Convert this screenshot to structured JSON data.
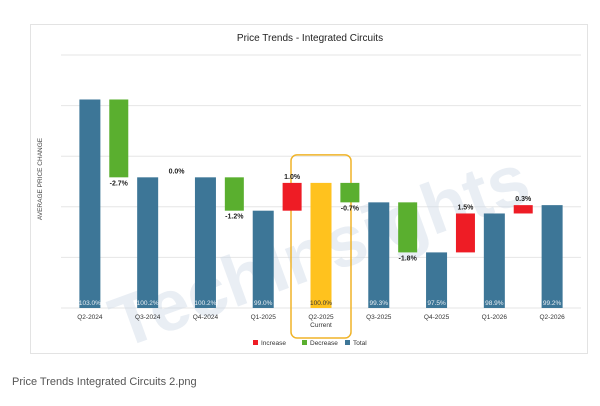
{
  "caption": "Price Trends Integrated Circuits 2.png",
  "watermark": "TechInsights",
  "colors": {
    "increase": "#ee1c25",
    "decrease": "#5aaf2f",
    "total": "#3d7697",
    "current": "#ffc21e",
    "highlight_border": "#f0b429",
    "grid": "#e6e6e6"
  },
  "chart_data": {
    "type": "waterfall",
    "title": "Price Trends - Integrated Circuits",
    "ylabel": "AVERAGE PRICE CHANGE",
    "xlabel": "",
    "ylim": [
      95.5,
      104.6
    ],
    "categories": [
      "Q2-2024",
      "Q3-2024",
      "Q4-2024",
      "Q1-2025",
      "Q2-2025",
      "Q3-2025",
      "Q4-2025",
      "Q1-2026",
      "Q2-2026"
    ],
    "current_category": "Q2-2025",
    "current_label": "Current",
    "totals": [
      {
        "category": "Q2-2024",
        "value": 103.0,
        "label": "103.0%"
      },
      {
        "category": "Q3-2024",
        "value": 100.2,
        "label": "100.2%"
      },
      {
        "category": "Q4-2024",
        "value": 100.2,
        "label": "100.2%"
      },
      {
        "category": "Q1-2025",
        "value": 99.0,
        "label": "99.0%"
      },
      {
        "category": "Q2-2025",
        "value": 100.0,
        "label": "100.0%",
        "current": true
      },
      {
        "category": "Q3-2025",
        "value": 99.3,
        "label": "99.3%"
      },
      {
        "category": "Q4-2025",
        "value": 97.5,
        "label": "97.5%"
      },
      {
        "category": "Q1-2026",
        "value": 98.9,
        "label": "98.9%"
      },
      {
        "category": "Q2-2026",
        "value": 99.2,
        "label": "99.2%"
      }
    ],
    "changes": [
      {
        "after": "Q2-2024",
        "from": 103.0,
        "to": 100.2,
        "label": "-2.7%",
        "kind": "decrease"
      },
      {
        "after": "Q3-2024",
        "from": 100.2,
        "to": 100.2,
        "label": "0.0%",
        "kind": "none"
      },
      {
        "after": "Q4-2024",
        "from": 100.2,
        "to": 99.0,
        "label": "-1.2%",
        "kind": "decrease"
      },
      {
        "after": "Q1-2025",
        "from": 99.0,
        "to": 100.0,
        "label": "1.0%",
        "kind": "increase"
      },
      {
        "after": "Q2-2025",
        "from": 100.0,
        "to": 99.3,
        "label": "-0.7%",
        "kind": "decrease"
      },
      {
        "after": "Q3-2025",
        "from": 99.3,
        "to": 97.5,
        "label": "-1.8%",
        "kind": "decrease"
      },
      {
        "after": "Q4-2025",
        "from": 97.5,
        "to": 98.9,
        "label": "1.5%",
        "kind": "increase"
      },
      {
        "after": "Q1-2026",
        "from": 98.9,
        "to": 99.2,
        "label": "0.3%",
        "kind": "increase"
      }
    ],
    "legend": [
      {
        "name": "Increase",
        "kind": "increase"
      },
      {
        "name": "Decrease",
        "kind": "decrease"
      },
      {
        "name": "Total",
        "kind": "total"
      }
    ],
    "legend_position": "bottom",
    "grid": true
  }
}
